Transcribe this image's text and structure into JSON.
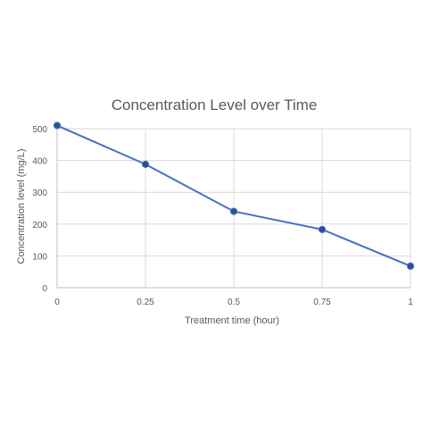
{
  "colors": {
    "background": "#ffffff",
    "grid": "#d9d9d9",
    "axis_line": "#bfbfbf",
    "tick_text": "#595959",
    "title_text": "#595959",
    "series": "#4472c4",
    "marker": "#2f4e8f"
  },
  "chart_data": {
    "type": "line",
    "title": "Concentration Level over Time",
    "xlabel": "Treatment time (hour)",
    "ylabel": "Concentration level (mg/L)",
    "x": [
      0,
      0.25,
      0.5,
      0.75,
      1
    ],
    "x_tick_labels": [
      "0",
      "0.25",
      "0.5",
      "0.75",
      "1"
    ],
    "y_ticks": [
      0,
      100,
      200,
      300,
      400,
      500
    ],
    "y_tick_labels": [
      "0",
      "100",
      "200",
      "300",
      "400",
      "500"
    ],
    "xlim": [
      0,
      1
    ],
    "ylim": [
      0,
      500
    ],
    "grid": true,
    "legend": "none",
    "series": [
      {
        "values": [
          510,
          388,
          240,
          183,
          68
        ]
      }
    ]
  }
}
